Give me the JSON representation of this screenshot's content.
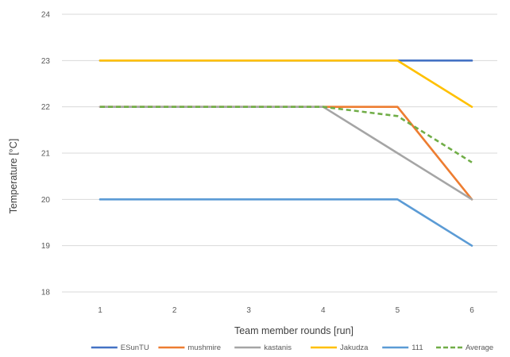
{
  "chart_data": {
    "type": "line",
    "title": "",
    "xlabel": "Team member rounds [run]",
    "ylabel": "Temperature [°C]",
    "x": [
      1,
      2,
      3,
      4,
      5,
      6
    ],
    "categories": [
      "1",
      "2",
      "3",
      "4",
      "5",
      "6"
    ],
    "ylim": [
      18,
      24
    ],
    "yticks": [
      "18",
      "19",
      "20",
      "21",
      "22",
      "23",
      "24"
    ],
    "grid": true,
    "legend_position": "bottom",
    "series": [
      {
        "name": "ESunTU",
        "color": "#4472c4",
        "dash": false,
        "values": [
          23,
          23,
          23,
          23,
          23,
          23
        ]
      },
      {
        "name": "mushmire",
        "color": "#ed7d31",
        "dash": false,
        "values": [
          22,
          22,
          22,
          22,
          22,
          20
        ]
      },
      {
        "name": "kastanis",
        "color": "#a5a5a5",
        "dash": false,
        "values": [
          22,
          22,
          22,
          22,
          21,
          20
        ]
      },
      {
        "name": "Jakudza",
        "color": "#ffc000",
        "dash": false,
        "values": [
          23,
          23,
          23,
          23,
          23,
          22
        ]
      },
      {
        "name": "111",
        "color": "#5b9bd5",
        "dash": false,
        "values": [
          20,
          20,
          20,
          20,
          20,
          19
        ]
      },
      {
        "name": "Average",
        "color": "#70ad47",
        "dash": true,
        "values": [
          22,
          22,
          22,
          22,
          21.8,
          20.8
        ]
      }
    ]
  }
}
